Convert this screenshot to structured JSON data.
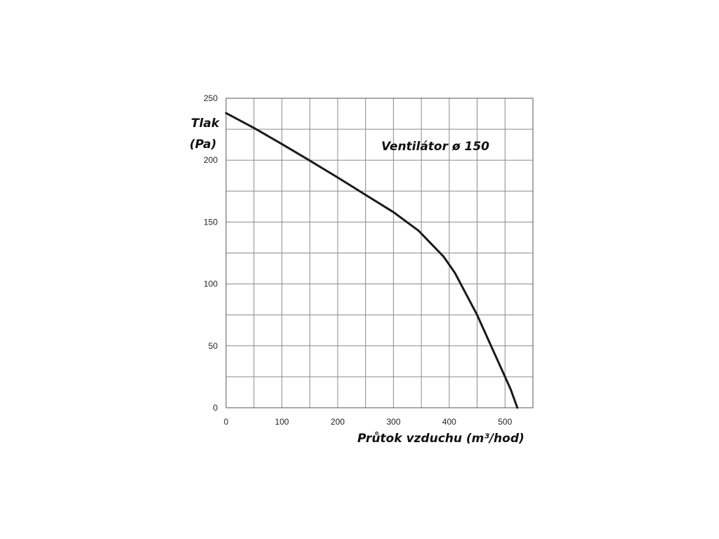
{
  "chart_data": {
    "type": "line",
    "title": "Ventilátor ø 150",
    "ylabel_line1": "Tlak",
    "ylabel_line2": "(Pa)",
    "xlabel": "Průtok vzduchu (m³/hod)",
    "xlim": [
      0,
      550
    ],
    "ylim": [
      0,
      250
    ],
    "x_ticks": [
      0,
      100,
      200,
      300,
      400,
      500
    ],
    "y_ticks": [
      0,
      50,
      100,
      150,
      200,
      250
    ],
    "x_grid": [
      0,
      50,
      100,
      150,
      200,
      250,
      300,
      350,
      400,
      450,
      500,
      550
    ],
    "y_grid": [
      0,
      25,
      50,
      75,
      100,
      125,
      150,
      175,
      200,
      225,
      250
    ],
    "grid": true,
    "series": [
      {
        "x": [
          0,
          50,
          100,
          145,
          200,
          250,
          300,
          345,
          390,
          410,
          450,
          490,
          510,
          522
        ],
        "y": [
          238,
          226,
          213,
          201,
          186,
          172,
          158,
          143,
          122,
          109,
          75,
          35,
          15,
          0
        ]
      }
    ]
  },
  "colors": {
    "curve": "#1a1a1a",
    "grid": "#8a8a8a",
    "text": "#111111"
  }
}
